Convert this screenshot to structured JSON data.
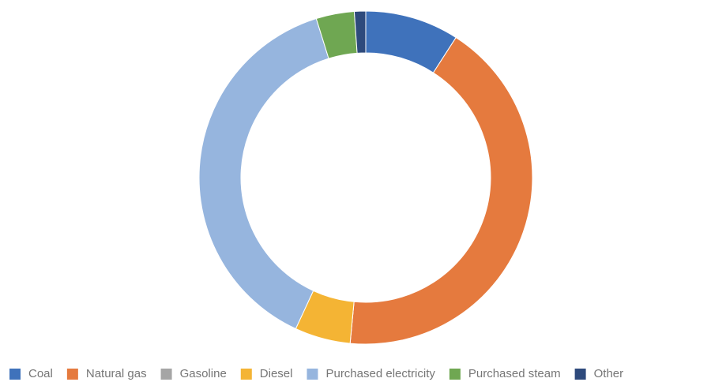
{
  "chart_data": {
    "type": "donut",
    "categories": [
      "Coal",
      "Natural gas",
      "Gasoline",
      "Diesel",
      "Purchased electricity",
      "Purchased steam",
      "Other"
    ],
    "values": [
      9.1,
      42.4,
      0,
      5.4,
      38.3,
      3.7,
      1.1
    ],
    "colors": [
      "#3f72bb",
      "#e57a3e",
      "#a5a5a5",
      "#f4b434",
      "#96b5de",
      "#6fa752",
      "#2e4a7c"
    ],
    "legend": "bottom"
  }
}
